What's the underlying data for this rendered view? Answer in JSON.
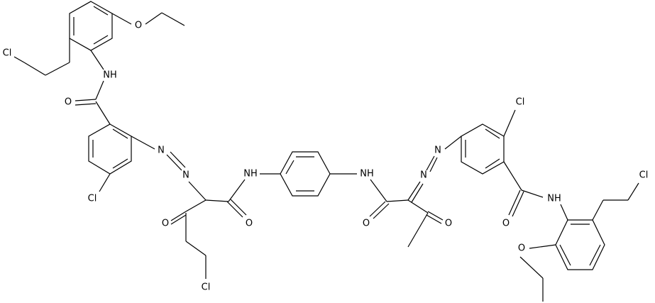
{
  "atoms": [
    "Cl",
    "O",
    "NH",
    "O",
    "N",
    "N",
    "Cl",
    "O",
    "O",
    "Cl",
    "NH",
    "NH",
    "O",
    "N",
    "N",
    "O",
    "Cl",
    "NH",
    "O",
    "Cl",
    "O"
  ]
}
